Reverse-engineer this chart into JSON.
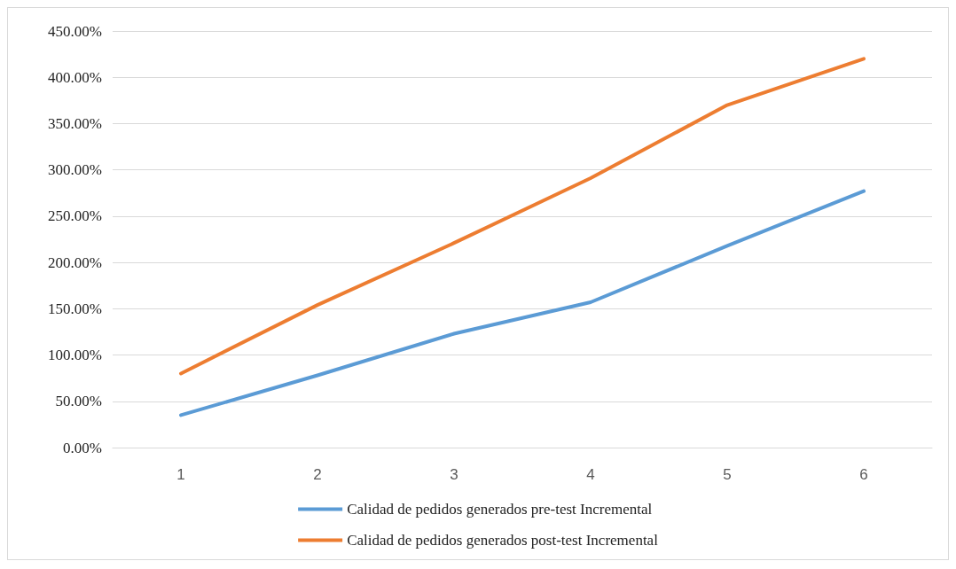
{
  "chart_data": {
    "type": "line",
    "categories": [
      "1",
      "2",
      "3",
      "4",
      "5",
      "6"
    ],
    "series": [
      {
        "name": "Calidad de pedidos generados pre-test Incremental",
        "color": "#5b9bd5",
        "values": [
          35,
          78,
          123,
          157,
          218,
          277
        ]
      },
      {
        "name": "Calidad de pedidos generados post-test Incremental",
        "color": "#ed7d31",
        "values": [
          80,
          154,
          221,
          291,
          370,
          420
        ]
      }
    ],
    "ylim": [
      0,
      450
    ],
    "yticks": [
      {
        "value": 0,
        "label": "0.00%"
      },
      {
        "value": 50,
        "label": "50.00%"
      },
      {
        "value": 100,
        "label": "100.00%"
      },
      {
        "value": 150,
        "label": "150.00%"
      },
      {
        "value": 200,
        "label": "200.00%"
      },
      {
        "value": 250,
        "label": "250.00%"
      },
      {
        "value": 300,
        "label": "300.00%"
      },
      {
        "value": 350,
        "label": "350.00%"
      },
      {
        "value": 400,
        "label": "400.00%"
      },
      {
        "value": 450,
        "label": "450.00%"
      }
    ],
    "grid": "y",
    "legend": "bottom",
    "marker": "none",
    "line_style": "solid"
  }
}
